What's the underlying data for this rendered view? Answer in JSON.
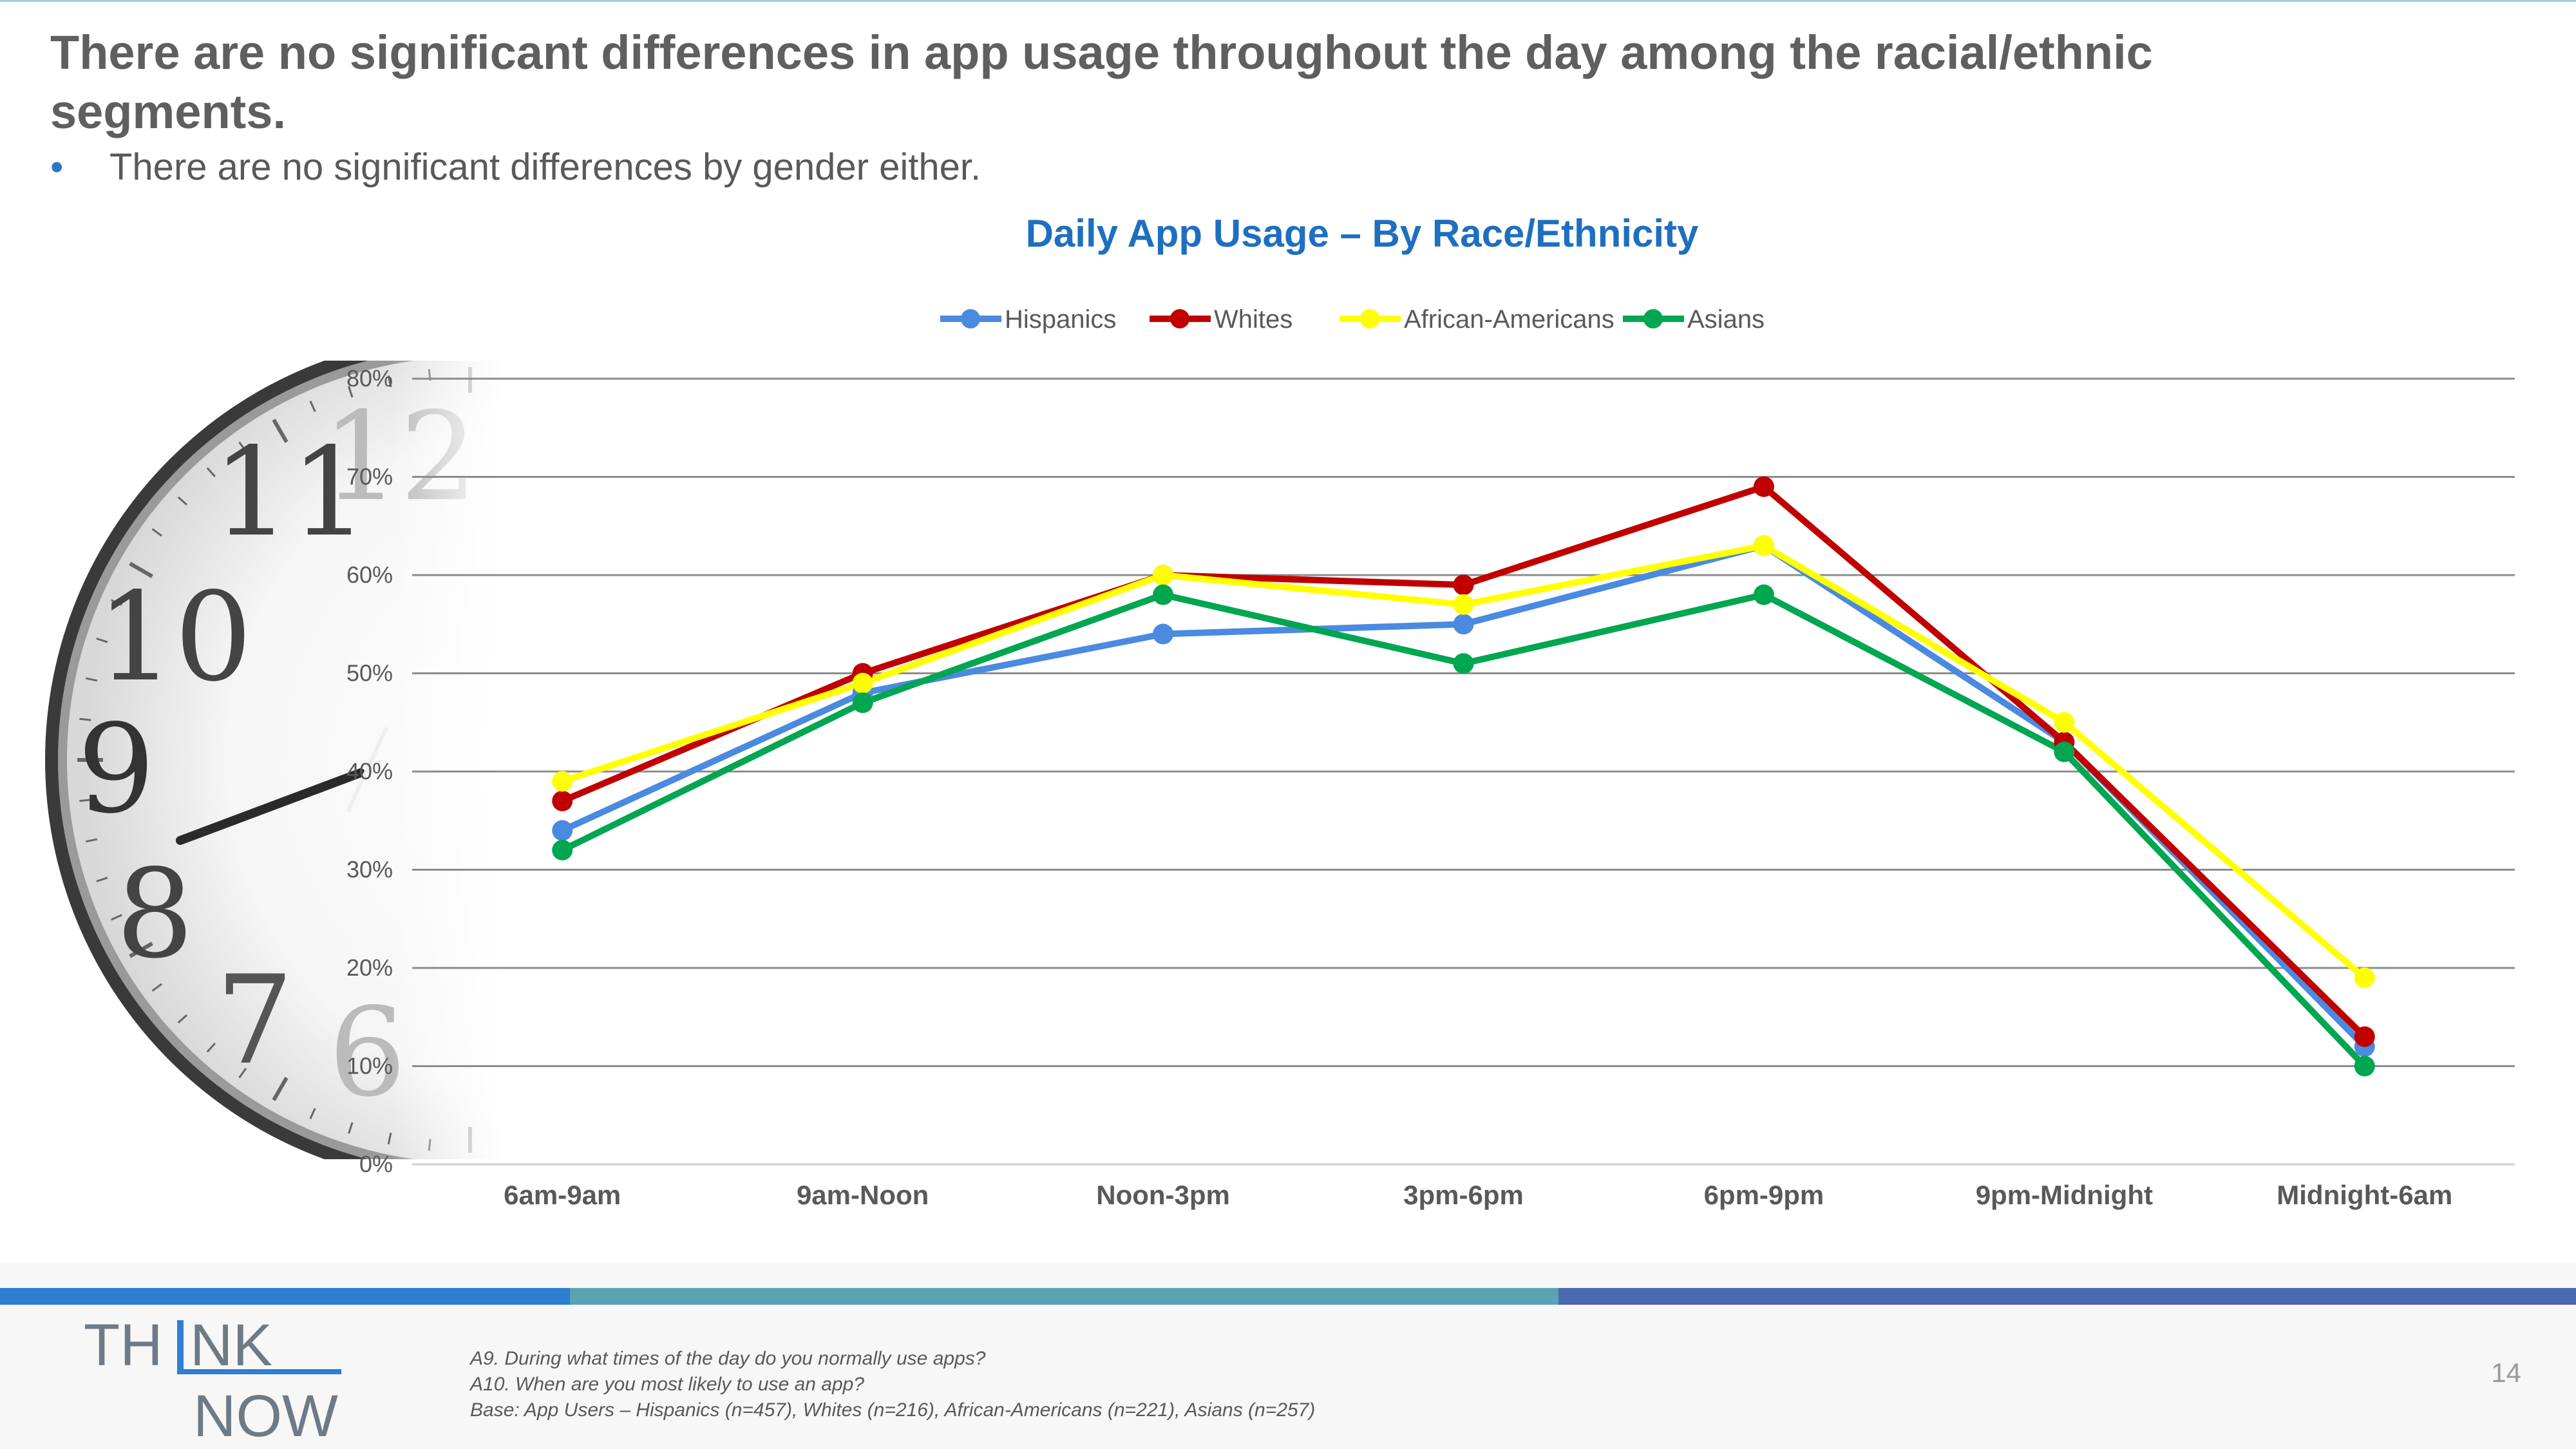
{
  "slide": {
    "headline": "There are no significant differences in app usage throughout the day among the racial/ethnic segments.",
    "bullet": "There are no significant differences by gender either.",
    "page_number": "14"
  },
  "chart_data": {
    "type": "line",
    "title": "Daily App Usage – By Race/Ethnicity",
    "categories": [
      "6am-9am",
      "9am-Noon",
      "Noon-3pm",
      "3pm-6pm",
      "6pm-9pm",
      "9pm-Midnight",
      "Midnight-6am"
    ],
    "series": [
      {
        "name": "Hispanics",
        "color": "#4a8ae0",
        "values": [
          34,
          48,
          54,
          55,
          63,
          43,
          12
        ]
      },
      {
        "name": "Whites",
        "color": "#c00000",
        "values": [
          37,
          50,
          60,
          59,
          69,
          43,
          13
        ]
      },
      {
        "name": "African-Americans",
        "color": "#ffff00",
        "values": [
          39,
          49,
          60,
          57,
          63,
          45,
          19
        ]
      },
      {
        "name": "Asians",
        "color": "#00a650",
        "values": [
          32,
          47,
          58,
          51,
          58,
          42,
          10
        ]
      }
    ],
    "y_ticks": [
      "0%",
      "10%",
      "20%",
      "30%",
      "40%",
      "50%",
      "60%",
      "70%",
      "80%"
    ],
    "ylim": [
      0,
      80
    ],
    "grid": true,
    "legend_position": "top-center"
  },
  "clock": {
    "numerals": [
      "11",
      "12",
      "10",
      "9",
      "8",
      "7",
      "6"
    ]
  },
  "logo": {
    "line1": "TH",
    "line1b": "NK",
    "line2": "NOW"
  },
  "footnotes": [
    "A9. During what times of the day do you normally use apps?",
    "A10. When are you most likely to use an app?",
    "Base: App Users – Hispanics (n=457), Whites (n=216), African-Americans (n=221), Asians (n=257)"
  ],
  "colors": {
    "stripe_blue": "#2e7fd1",
    "stripe_teal": "#5ba3b3",
    "stripe_navy": "#4a6bb0"
  }
}
